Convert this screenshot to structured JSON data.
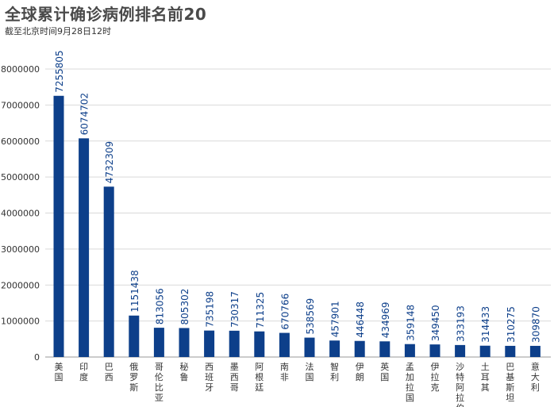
{
  "chart_data": {
    "type": "bar",
    "title": "全球累计确诊病例排名前20",
    "subtitle": "截至北京时间9月28日12时",
    "categories": [
      "美国",
      "印度",
      "巴西",
      "俄罗斯",
      "哥伦比亚",
      "秘鲁",
      "西班牙",
      "墨西哥",
      "阿根廷",
      "南非",
      "法国",
      "智利",
      "伊朗",
      "英国",
      "孟加拉国",
      "伊拉克",
      "沙特阿拉伯",
      "土耳其",
      "巴基斯坦",
      "意大利"
    ],
    "values": [
      7255805,
      6074702,
      4732309,
      1151438,
      813056,
      805302,
      735198,
      730317,
      711325,
      670766,
      538569,
      457901,
      446448,
      434969,
      359148,
      349450,
      333193,
      314433,
      310275,
      309870
    ],
    "value_labels": [
      "7255805",
      "6074702",
      "4732309",
      "1151438",
      "813056",
      "805302",
      "735198",
      "730317",
      "711325",
      "670766",
      "538569",
      "457901",
      "446448",
      "434969",
      "359148",
      "349450",
      "333193",
      "314433",
      "310275",
      "309870"
    ],
    "ylim": [
      0,
      8000000
    ],
    "yticks": [
      0,
      1000000,
      2000000,
      3000000,
      4000000,
      5000000,
      6000000,
      7000000,
      8000000
    ],
    "ytick_labels": [
      "0",
      "1000000",
      "2000000",
      "3000000",
      "4000000",
      "5000000",
      "6000000",
      "7000000",
      "8000000"
    ],
    "grid": true,
    "bar_color": "#0d3f8a",
    "xlabel": "",
    "ylabel": ""
  }
}
